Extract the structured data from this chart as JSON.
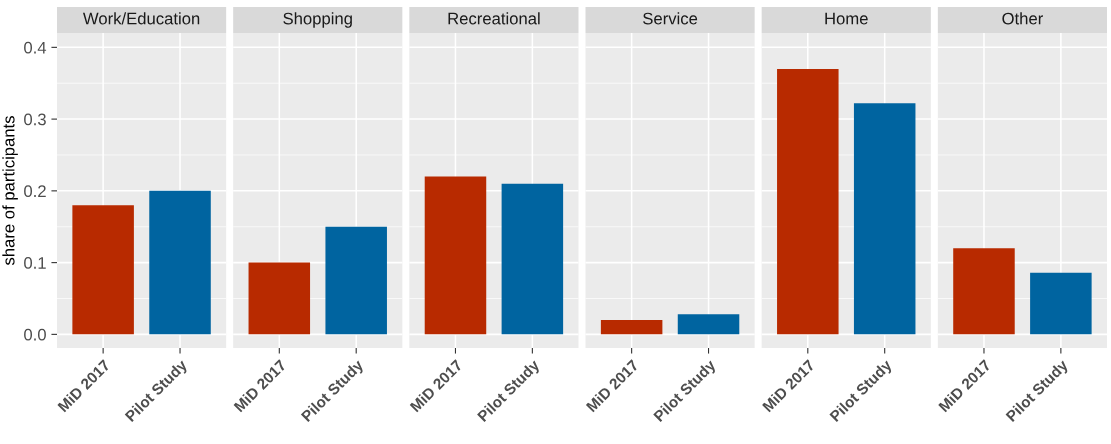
{
  "chart_data": [
    {
      "type": "bar",
      "title": "Work/Education",
      "ylabel": "share of participants",
      "categories": [
        "MiD 2017",
        "Pilot Study"
      ],
      "values": [
        0.18,
        0.2
      ],
      "colors": [
        "#b82a00",
        "#0064a0"
      ],
      "ylim": [
        -0.019,
        0.42
      ],
      "yticks": [
        {
          "value": 0,
          "label": "0.0"
        },
        0.1,
        0.2,
        0.3,
        0.4
      ],
      "grid": true
    },
    {
      "type": "bar",
      "title": "Shopping",
      "categories": [
        "MiD 2017",
        "Pilot Study"
      ],
      "values": [
        0.1,
        0.15
      ],
      "colors": [
        "#b82a00",
        "#0064a0"
      ],
      "ylim": [
        -0.019,
        0.42
      ],
      "yticks": [
        {
          "value": 0,
          "label": null
        },
        {
          "value": 0.1,
          "label": null
        },
        {
          "value": 0.2,
          "label": null
        },
        {
          "value": 0.3,
          "label": null
        },
        {
          "value": 0.4,
          "label": null
        }
      ],
      "tick_labels": "x",
      "grid": true
    },
    {
      "type": "bar",
      "title": "Recreational",
      "categories": [
        "MiD 2017",
        "Pilot Study"
      ],
      "values": [
        0.22,
        0.21
      ],
      "colors": [
        "#b82a00",
        "#0064a0"
      ],
      "ylim": [
        -0.019,
        0.42
      ],
      "yticks": [
        {
          "value": 0,
          "label": null
        },
        {
          "value": 0.1,
          "label": null
        },
        {
          "value": 0.2,
          "label": null
        },
        {
          "value": 0.3,
          "label": null
        },
        {
          "value": 0.4,
          "label": null
        }
      ],
      "tick_labels": "x",
      "grid": true
    },
    {
      "type": "bar",
      "title": "Service",
      "categories": [
        "MiD 2017",
        "Pilot Study"
      ],
      "values": [
        0.02,
        0.028
      ],
      "colors": [
        "#b82a00",
        "#0064a0"
      ],
      "ylim": [
        -0.019,
        0.42
      ],
      "yticks": [
        {
          "value": 0,
          "label": null
        },
        {
          "value": 0.1,
          "label": null
        },
        {
          "value": 0.2,
          "label": null
        },
        {
          "value": 0.3,
          "label": null
        },
        {
          "value": 0.4,
          "label": null
        }
      ],
      "tick_labels": "x",
      "grid": true
    },
    {
      "type": "bar",
      "title": "Home",
      "categories": [
        "MiD 2017",
        "Pilot Study"
      ],
      "values": [
        0.37,
        0.322
      ],
      "colors": [
        "#b82a00",
        "#0064a0"
      ],
      "ylim": [
        -0.019,
        0.42
      ],
      "yticks": [
        {
          "value": 0,
          "label": null
        },
        {
          "value": 0.1,
          "label": null
        },
        {
          "value": 0.2,
          "label": null
        },
        {
          "value": 0.3,
          "label": null
        },
        {
          "value": 0.4,
          "label": null
        }
      ],
      "tick_labels": "x",
      "grid": true
    },
    {
      "type": "bar",
      "title": "Other",
      "categories": [
        "MiD 2017",
        "Pilot Study"
      ],
      "values": [
        0.12,
        0.086
      ],
      "colors": [
        "#b82a00",
        "#0064a0"
      ],
      "ylim": [
        -0.019,
        0.42
      ],
      "yticks": [
        {
          "value": 0,
          "label": null
        },
        {
          "value": 0.1,
          "label": null
        },
        {
          "value": 0.2,
          "label": null
        },
        {
          "value": 0.3,
          "label": null
        },
        {
          "value": 0.4,
          "label": null
        }
      ],
      "tick_labels": "x",
      "grid": true
    }
  ]
}
